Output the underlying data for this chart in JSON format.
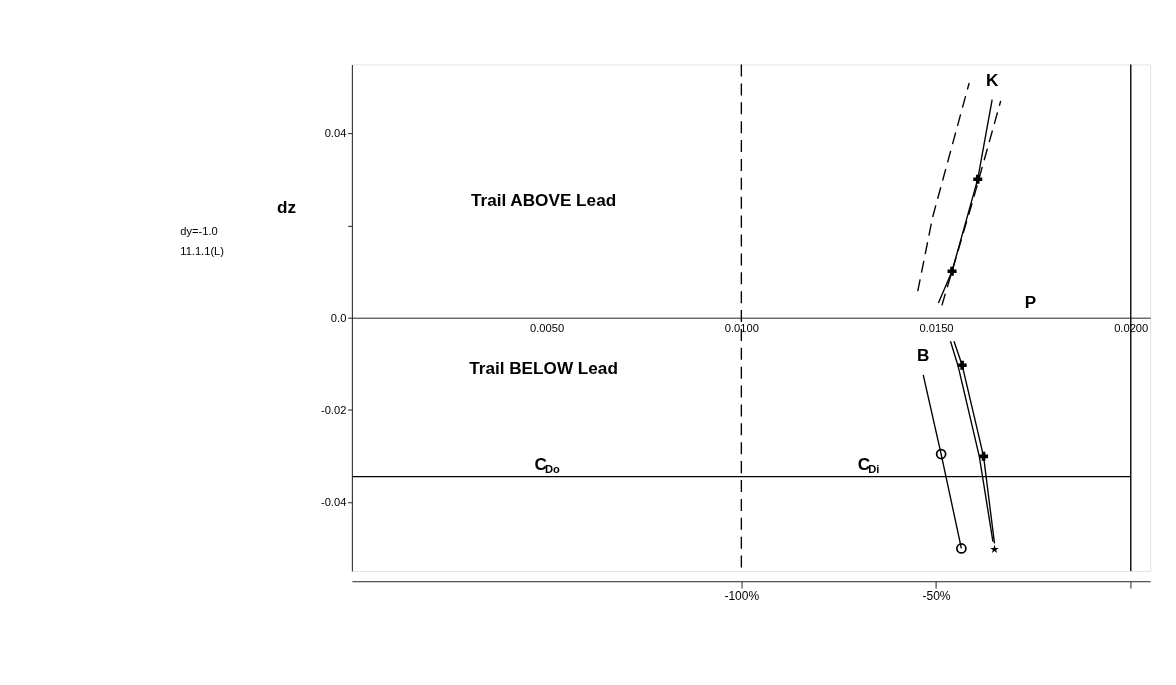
{
  "chart_data": {
    "type": "line",
    "ylabel": "dz",
    "xlim": [
      0,
      0.0205
    ],
    "xticks": [
      {
        "value": 0.005,
        "label": "0.0050"
      },
      {
        "value": 0.01,
        "label": "0.0100"
      },
      {
        "value": 0.015,
        "label": "0.0150"
      },
      {
        "value": 0.02,
        "label": "0.0200"
      }
    ],
    "ylim": [
      -0.055,
      0.055
    ],
    "yticks": [
      {
        "value": -0.04,
        "label": "-0.04"
      },
      {
        "value": -0.02,
        "label": "-0.02"
      },
      {
        "value": 0,
        "label": "0.0"
      },
      {
        "value": 0.02,
        "label": null
      },
      {
        "value": 0.04,
        "label": "0.04"
      }
    ],
    "x2lim": [
      -200,
      5
    ],
    "x2ticks": [
      {
        "value": -100,
        "label": "-100%"
      },
      {
        "value": -50,
        "label": "-50%"
      },
      {
        "value": 0,
        "label": null
      }
    ],
    "grid": false,
    "series": [
      {
        "name": "K",
        "type": "line",
        "line_style": "solid",
        "color": "#000000",
        "x": [
          0.01506,
          0.01541,
          0.01607,
          0.01644
        ],
        "values": [
          0.0032,
          0.0101,
          0.0301,
          0.0474
        ]
      },
      {
        "type": "scatter",
        "marker": "cross",
        "color": "#000000",
        "x": [
          0.01541,
          0.01607
        ],
        "values": [
          0.0101,
          0.0301
        ]
      },
      {
        "type": "line",
        "line_style": "dashed",
        "color": "#000000",
        "x": [
          0.01453,
          0.01491,
          0.01585
        ],
        "values": [
          0.0058,
          0.0218,
          0.051
        ]
      },
      {
        "type": "line",
        "line_style": "dashed",
        "color": "#000000",
        "x": [
          0.01515,
          0.01594,
          0.01666
        ],
        "values": [
          0.0027,
          0.0253,
          0.0471
        ]
      },
      {
        "name": "B",
        "type": "line",
        "line_style": "solid",
        "color": "#000000",
        "x": [
          0.01467,
          0.01513,
          0.01565
        ],
        "values": [
          -0.0124,
          -0.0296,
          -0.0501
        ]
      },
      {
        "type": "scatter",
        "marker": "circle",
        "color": "#000000",
        "x": [
          0.01513,
          0.01565
        ],
        "values": [
          -0.0296,
          -0.0501
        ]
      },
      {
        "type": "line",
        "line_style": "solid",
        "color": "#000000",
        "x": [
          0.01546,
          0.01567,
          0.01622,
          0.0165
        ],
        "values": [
          -0.0051,
          -0.0103,
          -0.0301,
          -0.049
        ]
      },
      {
        "type": "line",
        "line_style": "solid",
        "color": "#000000",
        "x": [
          0.01537,
          0.01556,
          0.01611,
          0.01646
        ],
        "values": [
          -0.0051,
          -0.0103,
          -0.0301,
          -0.0486
        ]
      },
      {
        "type": "scatter",
        "marker": "cross",
        "color": "#000000",
        "x": [
          0.01567,
          0.01622
        ],
        "values": [
          -0.0103,
          -0.0301
        ]
      },
      {
        "type": "scatter",
        "marker": "star",
        "color": "#000000",
        "x": [
          0.0165
        ],
        "values": [
          -0.0503
        ]
      },
      {
        "type": "line",
        "line_style": "solid",
        "color": "#000000",
        "x": [
          0,
          0.01,
          0.02
        ],
        "values": [
          -0.0345,
          -0.0345,
          -0.0345
        ]
      }
    ],
    "ref_lines": [
      {
        "axis": "x",
        "value": 0.01,
        "line_style": "dashed",
        "color": "#000000"
      },
      {
        "axis": "x",
        "value": 0.02,
        "line_style": "solid",
        "color": "#000000"
      }
    ],
    "annotations": [
      "Trail ABOVE Lead",
      "Trail BELOW Lead",
      "P",
      {
        "text": "C$_{Do}$",
        "x": 0.005,
        "y": -0.0345
      },
      {
        "text": "C$_{Di}$",
        "x": 0.0133,
        "y": -0.0345
      },
      "dy=-1.0",
      "11.1.1(L)"
    ]
  }
}
